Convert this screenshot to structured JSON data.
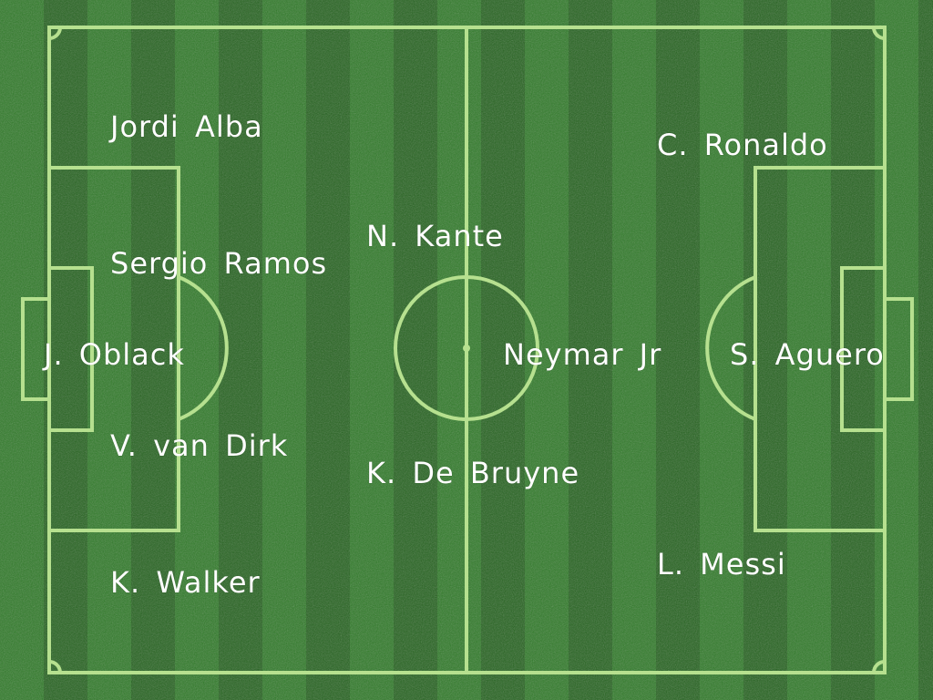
{
  "pitch": {
    "grass_light": "#2f7a28",
    "grass_dark": "#25631f",
    "line_color": "#b6e08f",
    "label_color": "#ffffff"
  },
  "players": {
    "jordi_alba": "Jordi Alba",
    "sergio_ramos": "Sergio Ramos",
    "oblack": "J. Oblack",
    "van_dirk": "V. van Dirk",
    "walker": "K. Walker",
    "kante": "N. Kante",
    "de_bruyne": "K. De Bruyne",
    "neymar": "Neymar Jr",
    "ronaldo": "C. Ronaldo",
    "aguero": "S. Aguero",
    "messi": "L. Messi"
  }
}
